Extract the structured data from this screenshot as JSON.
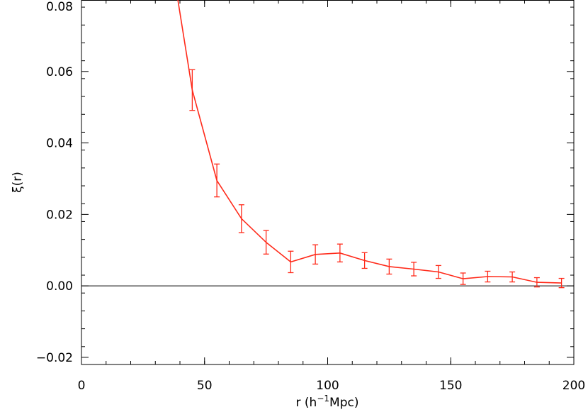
{
  "chart_data": {
    "type": "line",
    "title": "",
    "xlabel": "r (h",
    "xlabel_sup": "−1",
    "xlabel_suffix": "Mpc)",
    "ylabel": "ξ(r)",
    "xlim": [
      0,
      200
    ],
    "ylim": [
      -0.022,
      0.08
    ],
    "xticks": [
      0,
      50,
      100,
      150,
      200
    ],
    "xtick_labels": [
      "0",
      "50",
      "100",
      "150",
      "200"
    ],
    "yticks": [
      -0.02,
      0.0,
      0.02,
      0.04,
      0.06,
      0.08
    ],
    "ytick_labels": [
      "−0.02",
      "0.00",
      "0.02",
      "0.04",
      "0.06",
      "0.08"
    ],
    "x_minor_step": 10,
    "y_minor_step": 0.005,
    "zero_line": true,
    "grid": false,
    "legend": "none",
    "series": [
      {
        "color": "#ff2a1a",
        "x": [
          35,
          45,
          55,
          65,
          75,
          85,
          95,
          105,
          115,
          125,
          135,
          145,
          155,
          165,
          175,
          185,
          195
        ],
        "y": [
          0.098,
          0.0548,
          0.0295,
          0.0188,
          0.0122,
          0.0067,
          0.0088,
          0.0092,
          0.0071,
          0.0054,
          0.0047,
          0.0039,
          0.002,
          0.0026,
          0.0025,
          0.001,
          0.0008
        ],
        "err": [
          null,
          0.0057,
          0.0046,
          0.0039,
          0.0033,
          0.003,
          0.0027,
          0.0025,
          0.0022,
          0.0021,
          0.0019,
          0.0018,
          0.0016,
          0.0015,
          0.0014,
          0.0013,
          0.0013
        ]
      }
    ]
  }
}
